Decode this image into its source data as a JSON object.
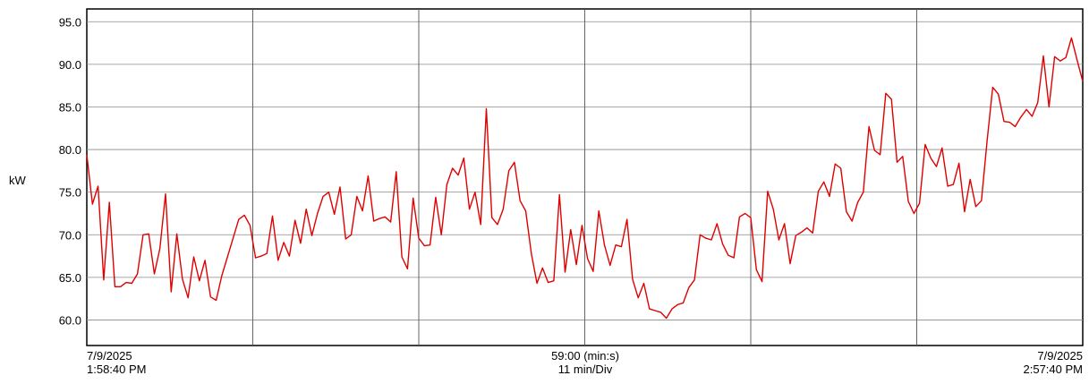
{
  "chart_data": {
    "type": "line",
    "title": "",
    "ylabel": "kW",
    "xlabel": "59:00 (min:s)",
    "x_division_label": "11 min/Div",
    "x_start_date": "7/9/2025",
    "x_start_time": "1:58:40 PM",
    "x_end_date": "7/9/2025",
    "x_end_time": "2:57:40 PM",
    "ylim": [
      57.0,
      96.5
    ],
    "yticks": [
      "60.0",
      "65.0",
      "70.0",
      "75.0",
      "80.0",
      "85.0",
      "90.0",
      "95.0"
    ],
    "x_divisions": 6,
    "grid": true,
    "line_color": "#e00000",
    "series": [
      {
        "values": [
          79.4,
          73.6,
          75.7,
          64.7,
          73.8,
          63.9,
          63.9,
          64.4,
          64.3,
          65.4,
          70.0,
          70.1,
          65.4,
          68.4,
          74.8,
          63.3,
          70.1,
          64.8,
          62.6,
          67.4,
          64.6,
          67.0,
          62.7,
          62.3,
          65.2,
          67.4,
          69.6,
          71.8,
          72.3,
          71.1,
          67.3,
          67.5,
          67.8,
          72.2,
          67.0,
          69.1,
          67.5,
          71.7,
          69.0,
          73.0,
          69.9,
          72.5,
          74.5,
          75.0,
          72.4,
          75.6,
          69.5,
          70.0,
          74.5,
          72.8,
          76.9,
          71.6,
          71.9,
          72.1,
          71.5,
          77.4,
          67.4,
          66.0,
          74.3,
          69.6,
          68.7,
          68.8,
          74.4,
          70.0,
          75.9,
          77.8,
          77.0,
          79.0,
          73.0,
          75.0,
          71.2,
          84.8,
          72.0,
          71.2,
          73.0,
          77.5,
          78.5,
          74.0,
          72.8,
          67.8,
          64.3,
          66.1,
          64.4,
          64.6,
          74.7,
          65.6,
          70.6,
          66.5,
          71.1,
          67.2,
          65.7,
          72.8,
          68.8,
          66.4,
          68.8,
          68.6,
          71.8,
          64.8,
          62.6,
          64.3,
          61.3,
          61.1,
          60.9,
          60.2,
          61.3,
          61.8,
          62.0,
          63.8,
          64.7,
          70.0,
          69.6,
          69.4,
          71.3,
          68.9,
          67.6,
          67.3,
          72.1,
          72.5,
          72.0,
          65.9,
          64.5,
          75.1,
          73.0,
          69.4,
          71.3,
          66.6,
          69.9,
          70.3,
          70.8,
          70.2,
          75.1,
          76.2,
          74.5,
          78.3,
          77.8,
          72.7,
          71.6,
          73.8,
          75.0,
          82.7,
          79.9,
          79.4,
          86.6,
          85.9,
          78.5,
          79.2,
          73.9,
          72.5,
          73.7,
          80.6,
          79.0,
          78.0,
          80.2,
          75.7,
          75.9,
          78.4,
          72.7,
          76.5,
          73.3,
          74.0,
          81.0,
          87.3,
          86.5,
          83.3,
          83.2,
          82.7,
          83.8,
          84.7,
          83.9,
          85.5,
          91.0,
          85.0,
          90.9,
          90.4,
          90.8,
          93.1,
          90.5,
          88.0
        ]
      }
    ]
  }
}
